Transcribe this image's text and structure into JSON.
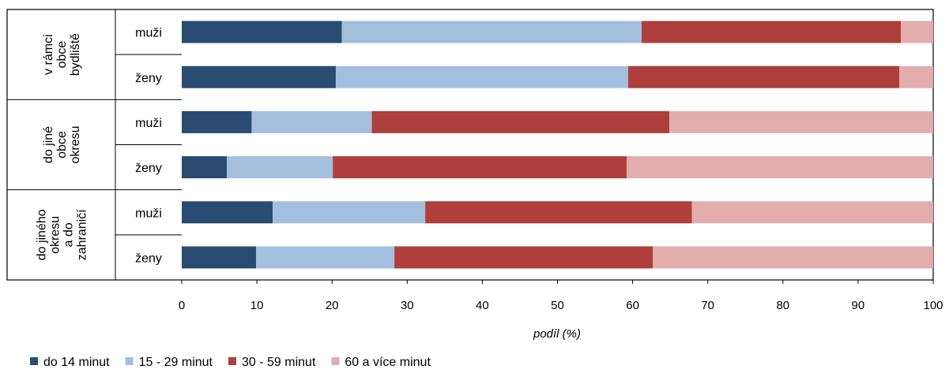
{
  "chart_data": {
    "type": "bar",
    "stacked": true,
    "orientation": "horizontal",
    "xlabel": "podíl (%)",
    "xlim": [
      0,
      100
    ],
    "xticks": [
      "0",
      "10",
      "20",
      "30",
      "40",
      "50",
      "60",
      "70",
      "80",
      "90",
      "100"
    ],
    "grid": false,
    "legend_position": "bottom",
    "groups": [
      {
        "lines": [
          "v rámci",
          "obce",
          "bydliště"
        ]
      },
      {
        "lines": [
          "do jiné",
          "obce",
          "okresu"
        ]
      },
      {
        "lines": [
          "do jiného",
          "okresu",
          "a do",
          "zahraničí"
        ]
      }
    ],
    "categories": [
      "muži",
      "ženy",
      "muži",
      "ženy",
      "muži",
      "ženy"
    ],
    "series": [
      {
        "name": "do 14 minut",
        "color": "#2b4c72",
        "values": [
          21.3,
          20.5,
          9.3,
          6.0,
          12.1,
          9.9
        ]
      },
      {
        "name": "15 - 29 minut",
        "color": "#a4bfde",
        "values": [
          39.9,
          38.9,
          16.0,
          14.1,
          20.3,
          18.4
        ]
      },
      {
        "name": "30 - 59 minut",
        "color": "#ae3f3c",
        "values": [
          34.5,
          36.1,
          39.6,
          39.1,
          35.5,
          34.4
        ]
      },
      {
        "name": "60 a více minut",
        "color": "#e3acad",
        "values": [
          4.3,
          4.5,
          35.1,
          40.8,
          32.1,
          37.3
        ]
      }
    ]
  }
}
